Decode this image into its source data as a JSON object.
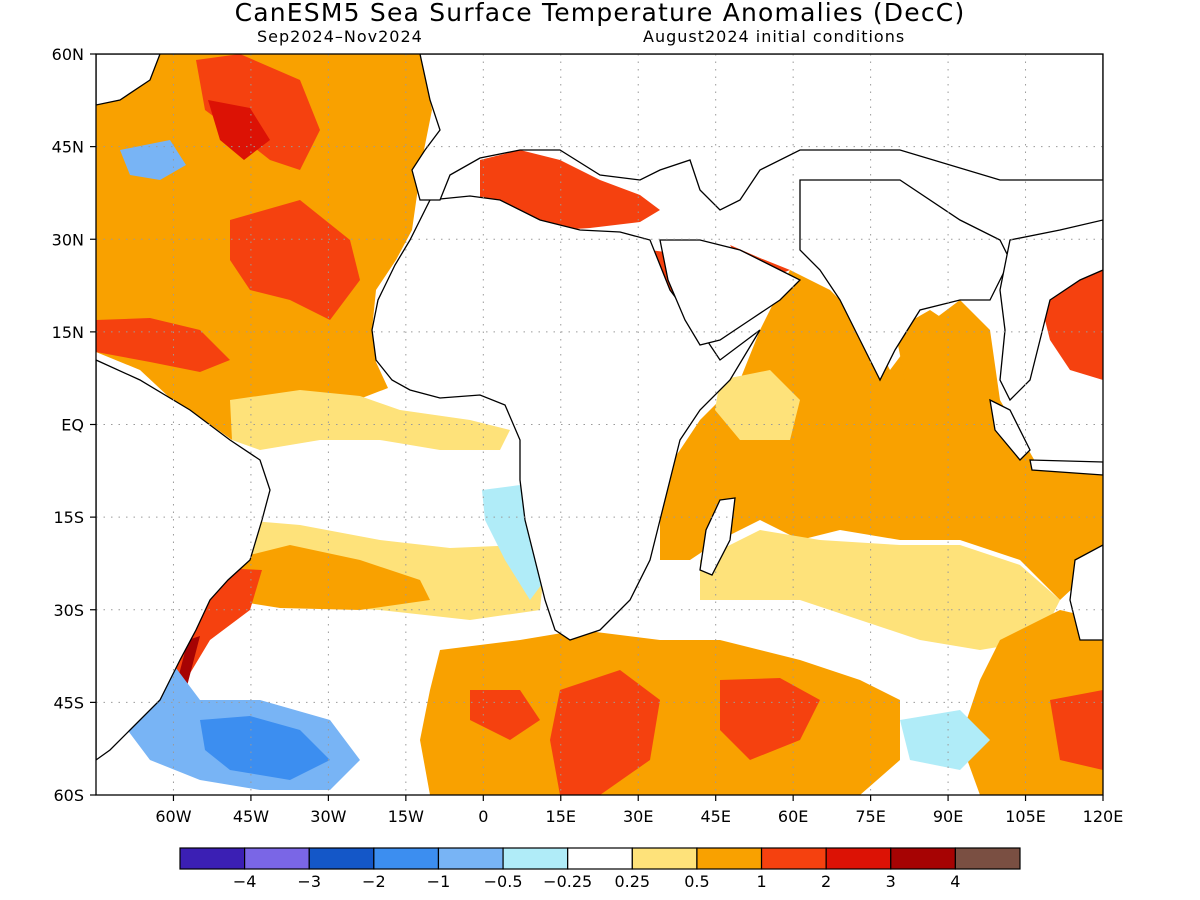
{
  "header": {
    "title": "CanESM5 Sea Surface Temperature Anomalies (DecC)",
    "period": "Sep2024–Nov2024",
    "init": "August2024 initial conditions"
  },
  "map": {
    "lon_range": [
      -75,
      120
    ],
    "lat_range": [
      -60,
      60
    ],
    "lat_ticks": [
      {
        "value": 60,
        "label": "60N"
      },
      {
        "value": 45,
        "label": "45N"
      },
      {
        "value": 30,
        "label": "30N"
      },
      {
        "value": 15,
        "label": "15N"
      },
      {
        "value": 0,
        "label": "EQ"
      },
      {
        "value": -15,
        "label": "15S"
      },
      {
        "value": -30,
        "label": "30S"
      },
      {
        "value": -45,
        "label": "45S"
      },
      {
        "value": -60,
        "label": "60S"
      }
    ],
    "lon_ticks": [
      {
        "value": -60,
        "label": "60W"
      },
      {
        "value": -45,
        "label": "45W"
      },
      {
        "value": -30,
        "label": "30W"
      },
      {
        "value": -15,
        "label": "15W"
      },
      {
        "value": 0,
        "label": "0"
      },
      {
        "value": 15,
        "label": "15E"
      },
      {
        "value": 30,
        "label": "30E"
      },
      {
        "value": 45,
        "label": "45E"
      },
      {
        "value": 60,
        "label": "60E"
      },
      {
        "value": 75,
        "label": "75E"
      },
      {
        "value": 90,
        "label": "90E"
      },
      {
        "value": 105,
        "label": "105E"
      },
      {
        "value": 120,
        "label": "120E"
      }
    ],
    "grid": true,
    "colors": {
      "land": "#ffffff",
      "coastline": "#000000",
      "gridline": "#9a9a9a",
      "frame": "#000000"
    }
  },
  "legend": {
    "colors": [
      "#3b1fb4",
      "#7a66e6",
      "#1457c8",
      "#3c8ef0",
      "#78b4f5",
      "#b0ecf8",
      "#ffffff",
      "#fee27a",
      "#f9a100",
      "#f5410f",
      "#dc1205",
      "#a60303",
      "#7a4f42"
    ],
    "labels": [
      "−4",
      "−3",
      "−2",
      "−1",
      "−0.5",
      "−0.25",
      "0.25",
      "0.5",
      "1",
      "2",
      "3",
      "4"
    ]
  }
}
